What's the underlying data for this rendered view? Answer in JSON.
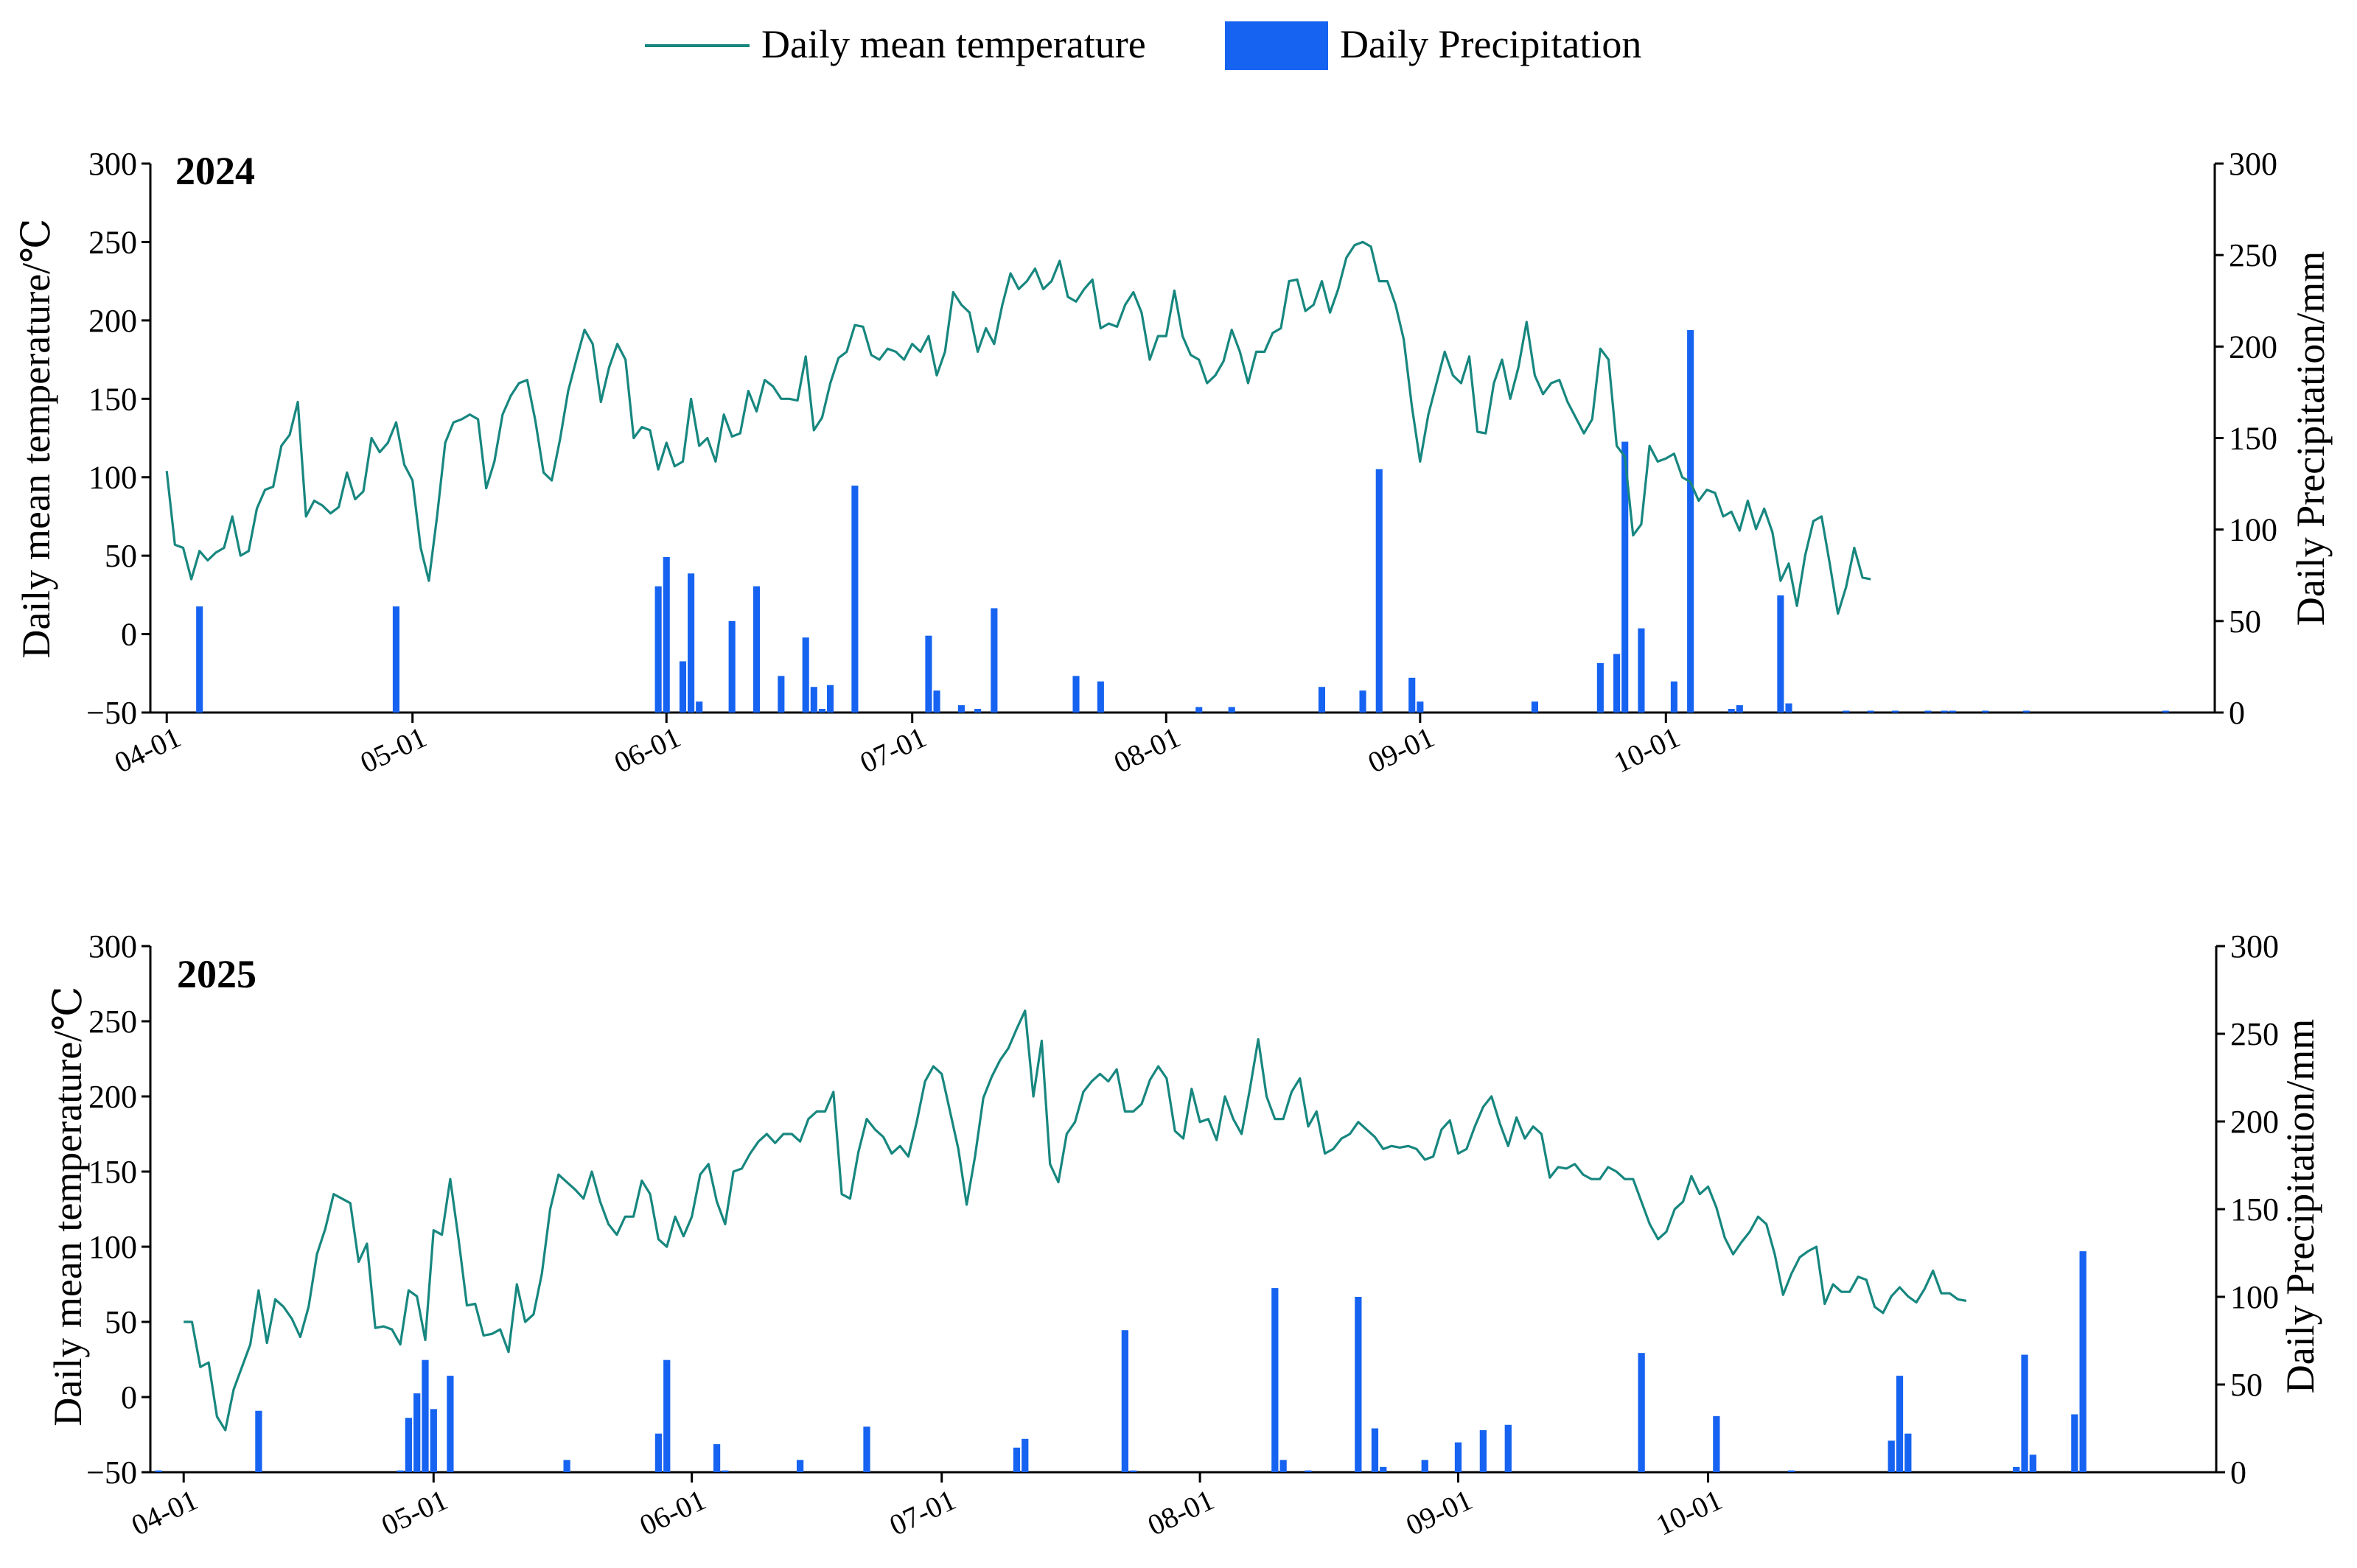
{
  "legend": {
    "temp_label": "Daily mean temperature",
    "precip_label": "Daily Precipitation",
    "temp_color": "#17877f",
    "precip_color": "#1763f1"
  },
  "chart_data": [
    {
      "type": "line+bar",
      "panel_label": "2024",
      "ylabel_left": "Daily mean temperature/℃",
      "ylabel_right": "Daily Precipitation/mm",
      "ylim_left": [
        -50,
        300
      ],
      "yticks_left": [
        -50,
        0,
        50,
        100,
        150,
        200,
        250,
        300
      ],
      "ylim_right": [
        0,
        300
      ],
      "yticks_right": [
        0,
        50,
        100,
        150,
        200,
        250,
        300
      ],
      "x_start_day": 0,
      "x_end_day": 244,
      "x_ticks": [
        {
          "day": 0,
          "label": "04-01"
        },
        {
          "day": 30,
          "label": "05-01"
        },
        {
          "day": 61,
          "label": "06-01"
        },
        {
          "day": 91,
          "label": "07-01"
        },
        {
          "day": 122,
          "label": "08-01"
        },
        {
          "day": 153,
          "label": "09-01"
        },
        {
          "day": 183,
          "label": "10-01"
        }
      ],
      "temperature": [
        104,
        57,
        55,
        35,
        53,
        47,
        52,
        55,
        75,
        50,
        53,
        80,
        92,
        94,
        120,
        127,
        148,
        75,
        85,
        82,
        77,
        81,
        103,
        86,
        91,
        125,
        116,
        122,
        135,
        108,
        98,
        55,
        34,
        75,
        122,
        135,
        137,
        140,
        137,
        93,
        110,
        140,
        152,
        160,
        162,
        136,
        103,
        98,
        124,
        155,
        175,
        194,
        185,
        148,
        170,
        185,
        175,
        125,
        132,
        130,
        105,
        122,
        107,
        110,
        150,
        120,
        125,
        110,
        140,
        126,
        128,
        155,
        142,
        162,
        158,
        150,
        150,
        149,
        177,
        130,
        138,
        160,
        176,
        180,
        197,
        196,
        178,
        175,
        182,
        180,
        175,
        185,
        180,
        190,
        165,
        180,
        218,
        210,
        205,
        180,
        195,
        185,
        210,
        230,
        220,
        225,
        233,
        220,
        225,
        238,
        215,
        212,
        220,
        226,
        195,
        198,
        196,
        210,
        218,
        205,
        175,
        190,
        190,
        219,
        190,
        178,
        175,
        160,
        165,
        174,
        194,
        180,
        160,
        180,
        180,
        192,
        195,
        225,
        226,
        206,
        210,
        225,
        205,
        220,
        240,
        248,
        250,
        247,
        225,
        225,
        210,
        188,
        145,
        110,
        140,
        160,
        180,
        165,
        160,
        177,
        129,
        128,
        160,
        175,
        150,
        170,
        199,
        165,
        153,
        160,
        162,
        148,
        138,
        128,
        137,
        182,
        175,
        120,
        113,
        63,
        70,
        120,
        110,
        112,
        115,
        100,
        97,
        85,
        92,
        90,
        75,
        78,
        66,
        85,
        67,
        80,
        65,
        34,
        45,
        18,
        50,
        72,
        75,
        45,
        13,
        30,
        55,
        36,
        35
      ],
      "precipitation": [
        {
          "day": 4,
          "mm": 58
        },
        {
          "day": 28,
          "mm": 58
        },
        {
          "day": 60,
          "mm": 69
        },
        {
          "day": 61,
          "mm": 85
        },
        {
          "day": 63,
          "mm": 28
        },
        {
          "day": 64,
          "mm": 76
        },
        {
          "day": 65,
          "mm": 6
        },
        {
          "day": 69,
          "mm": 50
        },
        {
          "day": 72,
          "mm": 69
        },
        {
          "day": 75,
          "mm": 20
        },
        {
          "day": 78,
          "mm": 41
        },
        {
          "day": 79,
          "mm": 14
        },
        {
          "day": 80,
          "mm": 2
        },
        {
          "day": 81,
          "mm": 15
        },
        {
          "day": 84,
          "mm": 124
        },
        {
          "day": 93,
          "mm": 42
        },
        {
          "day": 94,
          "mm": 12
        },
        {
          "day": 97,
          "mm": 4
        },
        {
          "day": 99,
          "mm": 2
        },
        {
          "day": 101,
          "mm": 57
        },
        {
          "day": 111,
          "mm": 20
        },
        {
          "day": 114,
          "mm": 17
        },
        {
          "day": 126,
          "mm": 3
        },
        {
          "day": 130,
          "mm": 3
        },
        {
          "day": 141,
          "mm": 14
        },
        {
          "day": 146,
          "mm": 12
        },
        {
          "day": 148,
          "mm": 133
        },
        {
          "day": 152,
          "mm": 19
        },
        {
          "day": 153,
          "mm": 6
        },
        {
          "day": 167,
          "mm": 6
        },
        {
          "day": 175,
          "mm": 27
        },
        {
          "day": 177,
          "mm": 32
        },
        {
          "day": 178,
          "mm": 148
        },
        {
          "day": 180,
          "mm": 46
        },
        {
          "day": 184,
          "mm": 17
        },
        {
          "day": 186,
          "mm": 209
        },
        {
          "day": 191,
          "mm": 2
        },
        {
          "day": 192,
          "mm": 4
        },
        {
          "day": 197,
          "mm": 64
        },
        {
          "day": 198,
          "mm": 5
        },
        {
          "day": 205,
          "mm": 1
        },
        {
          "day": 208,
          "mm": 1
        },
        {
          "day": 211,
          "mm": 1
        },
        {
          "day": 215,
          "mm": 1
        },
        {
          "day": 217,
          "mm": 1
        },
        {
          "day": 218,
          "mm": 1
        },
        {
          "day": 222,
          "mm": 1
        },
        {
          "day": 227,
          "mm": 1
        },
        {
          "day": 244,
          "mm": 1
        }
      ]
    },
    {
      "type": "line+bar",
      "panel_label": "2025",
      "ylabel_left": "Daily mean temperature/℃",
      "ylabel_right": "Daily Precipitation/mm",
      "ylim_left": [
        -50,
        300
      ],
      "yticks_left": [
        -50,
        0,
        50,
        100,
        150,
        200,
        250,
        300
      ],
      "ylim_right": [
        0,
        300
      ],
      "yticks_right": [
        0,
        50,
        100,
        150,
        200,
        250,
        300
      ],
      "x_start_day": 0,
      "x_end_day": 243,
      "x_ticks": [
        {
          "day": 0,
          "label": "04-01"
        },
        {
          "day": 30,
          "label": "05-01"
        },
        {
          "day": 61,
          "label": "06-01"
        },
        {
          "day": 91,
          "label": "07-01"
        },
        {
          "day": 122,
          "label": "08-01"
        },
        {
          "day": 153,
          "label": "09-01"
        },
        {
          "day": 183,
          "label": "10-01"
        }
      ],
      "temperature": [
        50,
        50,
        20,
        23,
        -13,
        -22,
        5,
        20,
        35,
        71,
        36,
        65,
        60,
        52,
        40,
        60,
        95,
        112,
        135,
        132,
        129,
        90,
        102,
        46,
        47,
        45,
        35,
        71,
        67,
        38,
        111,
        108,
        145,
        105,
        61,
        62,
        41,
        42,
        45,
        30,
        75,
        50,
        55,
        82,
        125,
        148,
        143,
        138,
        132,
        150,
        130,
        115,
        108,
        120,
        120,
        144,
        135,
        105,
        100,
        120,
        107,
        120,
        148,
        155,
        130,
        115,
        150,
        152,
        162,
        170,
        175,
        169,
        175,
        175,
        170,
        185,
        190,
        190,
        203,
        135,
        132,
        163,
        185,
        178,
        173,
        162,
        167,
        160,
        183,
        210,
        220,
        215,
        190,
        165,
        128,
        160,
        199,
        213,
        224,
        232,
        245,
        257,
        200,
        237,
        155,
        143,
        175,
        183,
        203,
        210,
        215,
        210,
        218,
        190,
        190,
        195,
        211,
        220,
        212,
        177,
        172,
        205,
        183,
        185,
        171,
        200,
        185,
        175,
        205,
        238,
        200,
        185,
        185,
        203,
        212,
        180,
        190,
        162,
        165,
        172,
        175,
        183,
        178,
        173,
        165,
        167,
        166,
        167,
        165,
        158,
        160,
        178,
        184,
        162,
        165,
        180,
        193,
        200,
        182,
        167,
        186,
        172,
        180,
        175,
        146,
        153,
        152,
        155,
        148,
        145,
        145,
        153,
        150,
        145,
        145,
        130,
        115,
        105,
        110,
        125,
        130,
        147,
        135,
        140,
        126,
        106,
        95,
        103,
        110,
        120,
        115,
        95,
        68,
        82,
        93,
        97,
        100,
        62,
        75,
        70,
        70,
        80,
        78,
        60,
        56,
        67,
        73,
        67,
        63,
        72,
        84,
        69,
        69,
        65,
        64
      ],
      "precipitation": [
        {
          "day": -3,
          "mm": 1
        },
        {
          "day": 9,
          "mm": 35
        },
        {
          "day": 26,
          "mm": 1
        },
        {
          "day": 27,
          "mm": 31
        },
        {
          "day": 28,
          "mm": 45
        },
        {
          "day": 29,
          "mm": 64
        },
        {
          "day": 30,
          "mm": 36
        },
        {
          "day": 32,
          "mm": 55
        },
        {
          "day": 46,
          "mm": 7
        },
        {
          "day": 57,
          "mm": 22
        },
        {
          "day": 58,
          "mm": 64
        },
        {
          "day": 64,
          "mm": 16
        },
        {
          "day": 65,
          "mm": 1
        },
        {
          "day": 74,
          "mm": 7
        },
        {
          "day": 82,
          "mm": 26
        },
        {
          "day": 100,
          "mm": 14
        },
        {
          "day": 101,
          "mm": 19
        },
        {
          "day": 113,
          "mm": 81
        },
        {
          "day": 114,
          "mm": 1
        },
        {
          "day": 131,
          "mm": 105
        },
        {
          "day": 132,
          "mm": 7
        },
        {
          "day": 135,
          "mm": 1
        },
        {
          "day": 141,
          "mm": 100
        },
        {
          "day": 143,
          "mm": 25
        },
        {
          "day": 144,
          "mm": 3
        },
        {
          "day": 149,
          "mm": 7
        },
        {
          "day": 153,
          "mm": 17
        },
        {
          "day": 156,
          "mm": 24
        },
        {
          "day": 159,
          "mm": 27
        },
        {
          "day": 175,
          "mm": 68
        },
        {
          "day": 184,
          "mm": 32
        },
        {
          "day": 193,
          "mm": 1
        },
        {
          "day": 205,
          "mm": 18
        },
        {
          "day": 206,
          "mm": 55
        },
        {
          "day": 207,
          "mm": 22
        },
        {
          "day": 220,
          "mm": 3
        },
        {
          "day": 221,
          "mm": 67
        },
        {
          "day": 222,
          "mm": 10
        },
        {
          "day": 227,
          "mm": 33
        },
        {
          "day": 228,
          "mm": 126
        }
      ]
    }
  ]
}
